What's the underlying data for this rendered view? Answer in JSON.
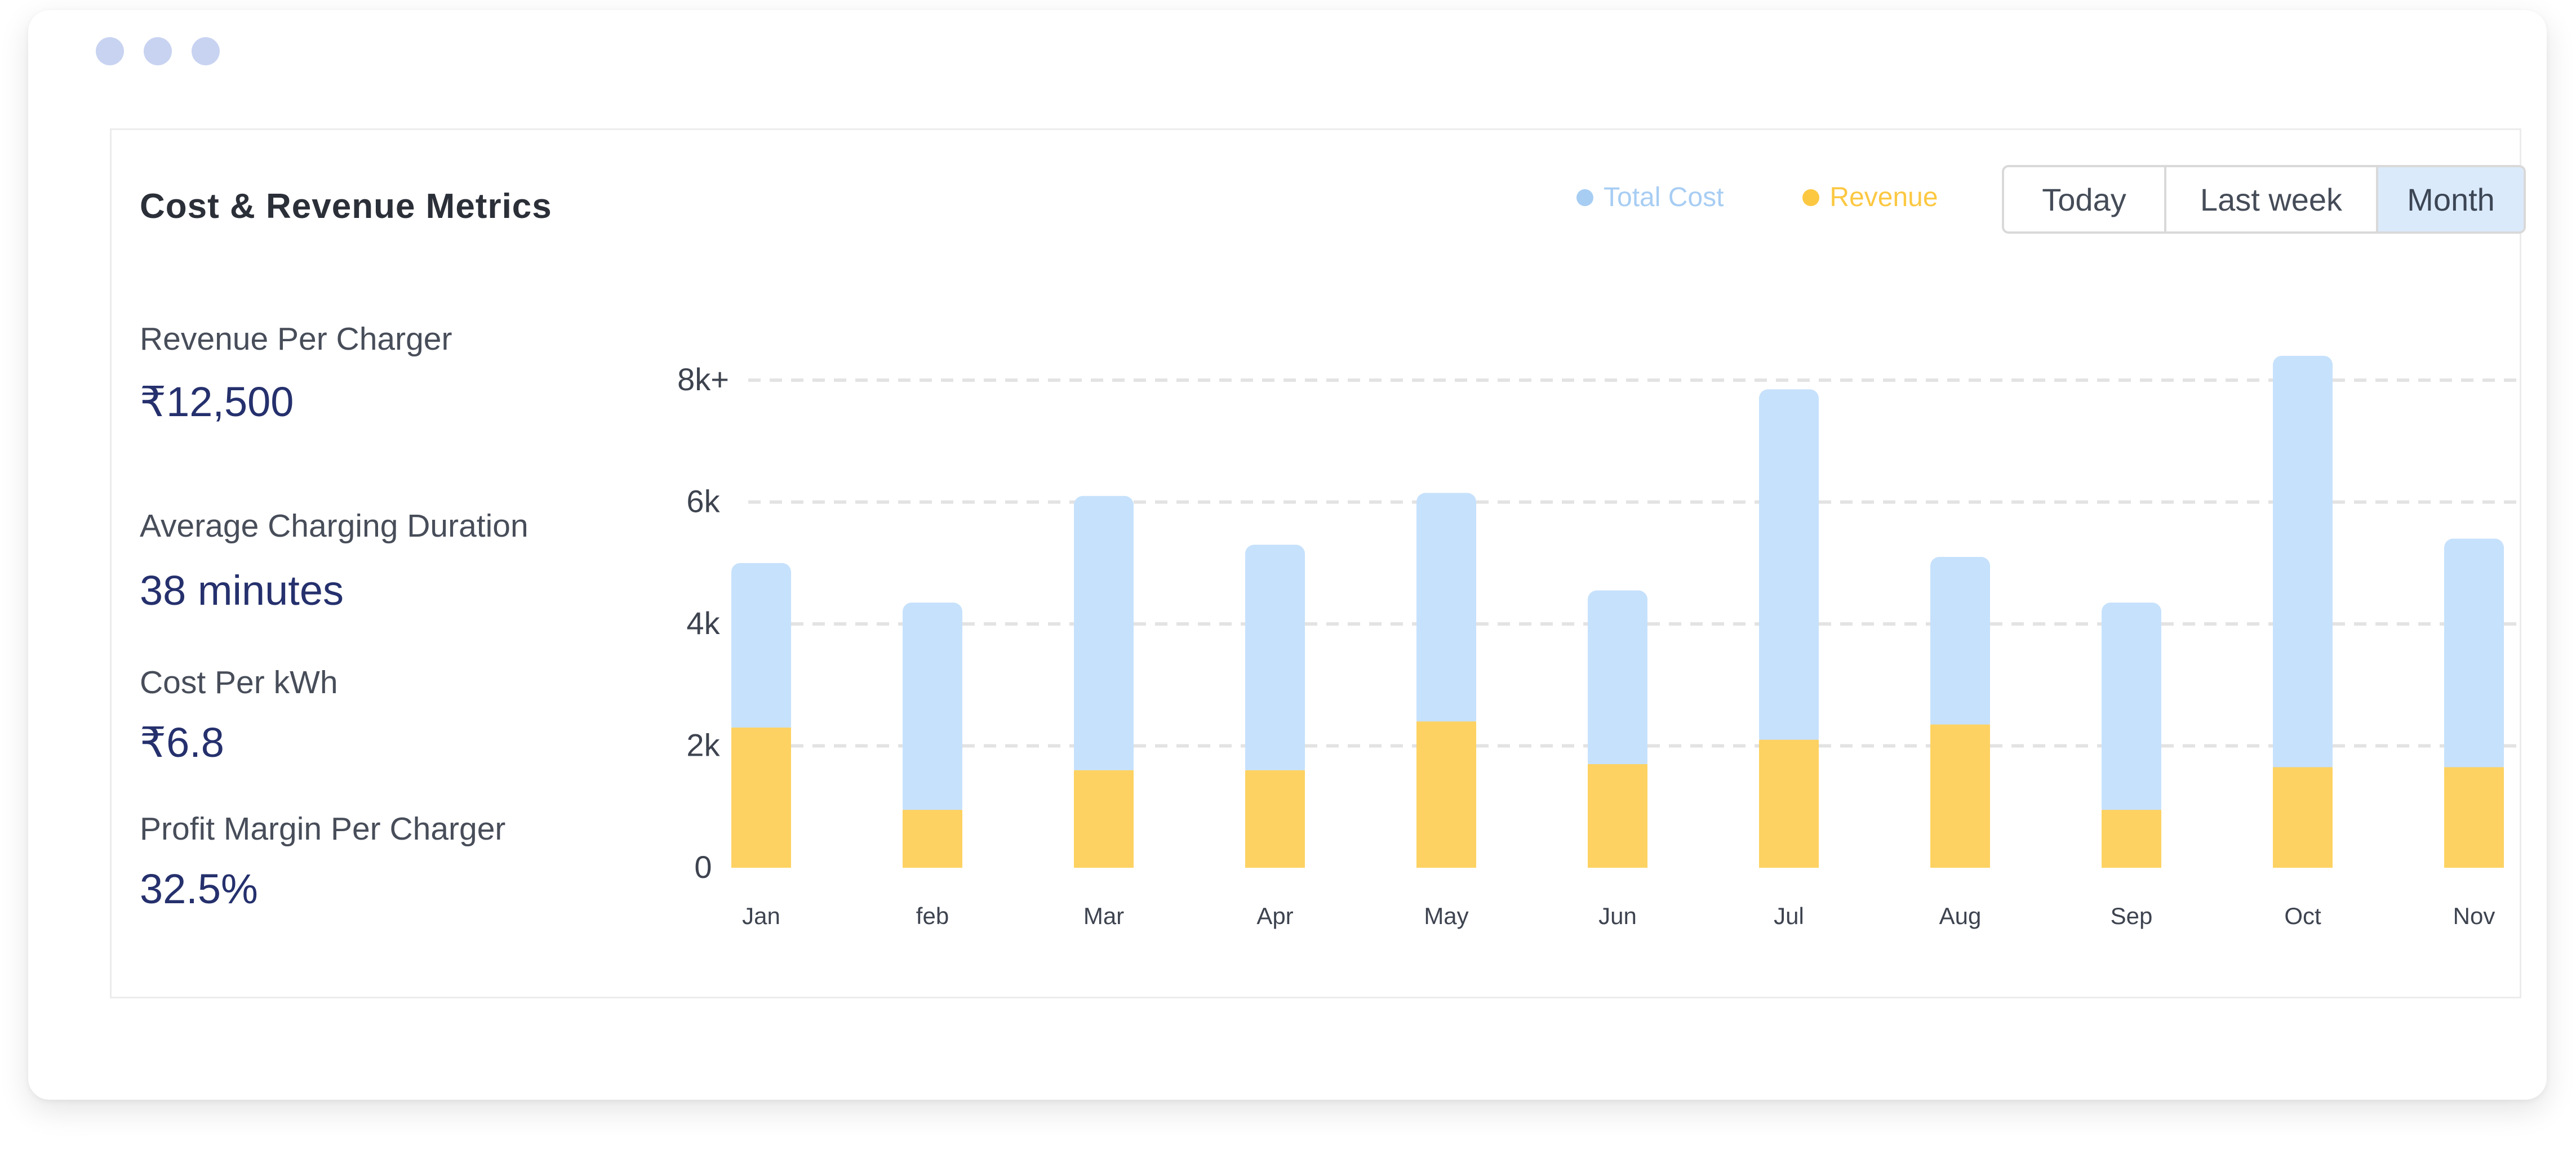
{
  "window": {
    "dots": [
      "dot",
      "dot",
      "dot"
    ]
  },
  "card": {
    "title": "Cost & Revenue Metrics",
    "legend": [
      {
        "label": "Total Cost",
        "color": "#a7cdf3"
      },
      {
        "label": "Revenue",
        "color": "#fcc842"
      }
    ],
    "range_buttons": [
      {
        "label": "Today",
        "active": false
      },
      {
        "label": "Last week",
        "active": false
      },
      {
        "label": "Month",
        "active": true
      }
    ],
    "metrics": [
      {
        "label": "Revenue Per Charger",
        "value": "₹12,500"
      },
      {
        "label": "Average Charging Duration",
        "value": "38 minutes"
      },
      {
        "label": "Cost Per kWh",
        "value": "₹6.8"
      },
      {
        "label": "Profit Margin Per Charger",
        "value": "32.5%"
      }
    ]
  },
  "chart_data": {
    "type": "bar",
    "stacked": true,
    "categories": [
      "Jan",
      "feb",
      "Mar",
      "Apr",
      "May",
      "Jun",
      "Jul",
      "Aug",
      "Sep",
      "Oct",
      "Nov"
    ],
    "y_ticks": [
      "0",
      "2k",
      "4k",
      "6k",
      "8k+"
    ],
    "ylim": [
      0,
      8500
    ],
    "grid": true,
    "series": [
      {
        "name": "Revenue",
        "color": "#fdd262",
        "values": [
          2300,
          950,
          1600,
          1600,
          2400,
          1700,
          2100,
          2350,
          950,
          1650,
          1650
        ]
      },
      {
        "name": "Total Cost",
        "color": "#c6e1fc",
        "values": [
          2700,
          3400,
          4500,
          3700,
          3750,
          2850,
          5750,
          2750,
          3400,
          6750,
          3750
        ]
      }
    ]
  },
  "colors": {
    "total_cost": "#c6e1fc",
    "revenue": "#fdd262",
    "legend_cost_text": "#a7cdf3",
    "legend_revenue_text": "#fcc842",
    "metric_value": "#25306d",
    "active_button": "#dbeafb"
  }
}
